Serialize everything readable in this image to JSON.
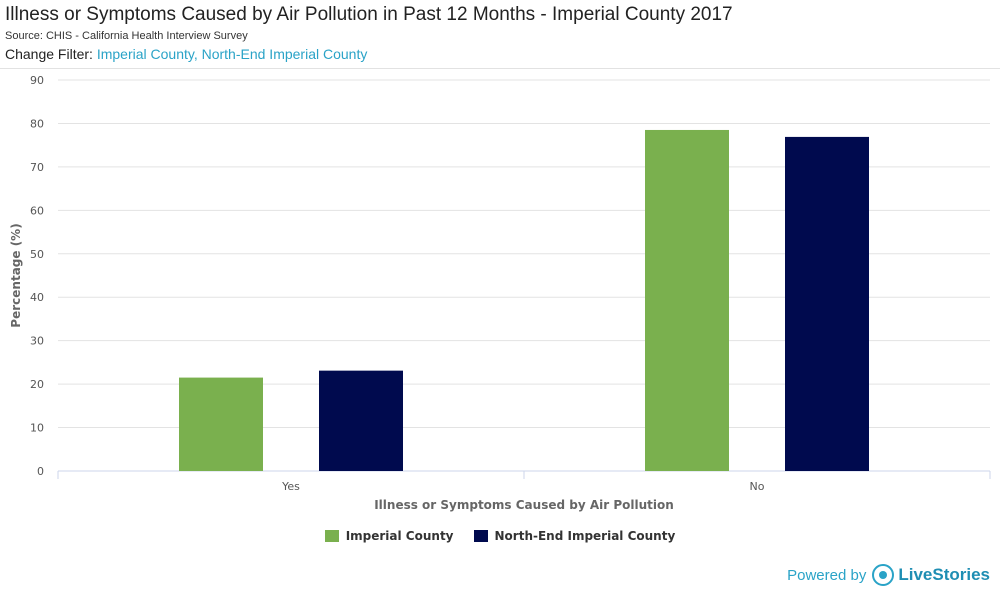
{
  "header": {
    "title": "Illness or Symptoms Caused by Air Pollution in Past 12 Months - Imperial County  2017",
    "source": "Source: CHIS - California Health Interview Survey",
    "filter_label": "Change Filter:",
    "filter_value": "Imperial County, North-End Imperial County"
  },
  "footer": {
    "powered_by": "Powered by",
    "brand": "LiveStories"
  },
  "chart_data": {
    "type": "bar",
    "title": "Illness or Symptoms Caused by Air Pollution in Past 12 Months - Imperial County  2017",
    "xlabel": "Illness or Symptoms Caused by Air Pollution",
    "ylabel": "Percentage (%)",
    "ylim": [
      0,
      90
    ],
    "yticks": [
      0,
      10,
      20,
      30,
      40,
      50,
      60,
      70,
      80,
      90
    ],
    "categories": [
      "Yes",
      "No"
    ],
    "grid": true,
    "legend": "bottom-center",
    "series": [
      {
        "name": "Imperial County",
        "color": "#7ab04e",
        "values": [
          21.5,
          78.5
        ]
      },
      {
        "name": "North-End Imperial County",
        "color": "#000a4e",
        "values": [
          23.1,
          76.9
        ]
      }
    ]
  }
}
